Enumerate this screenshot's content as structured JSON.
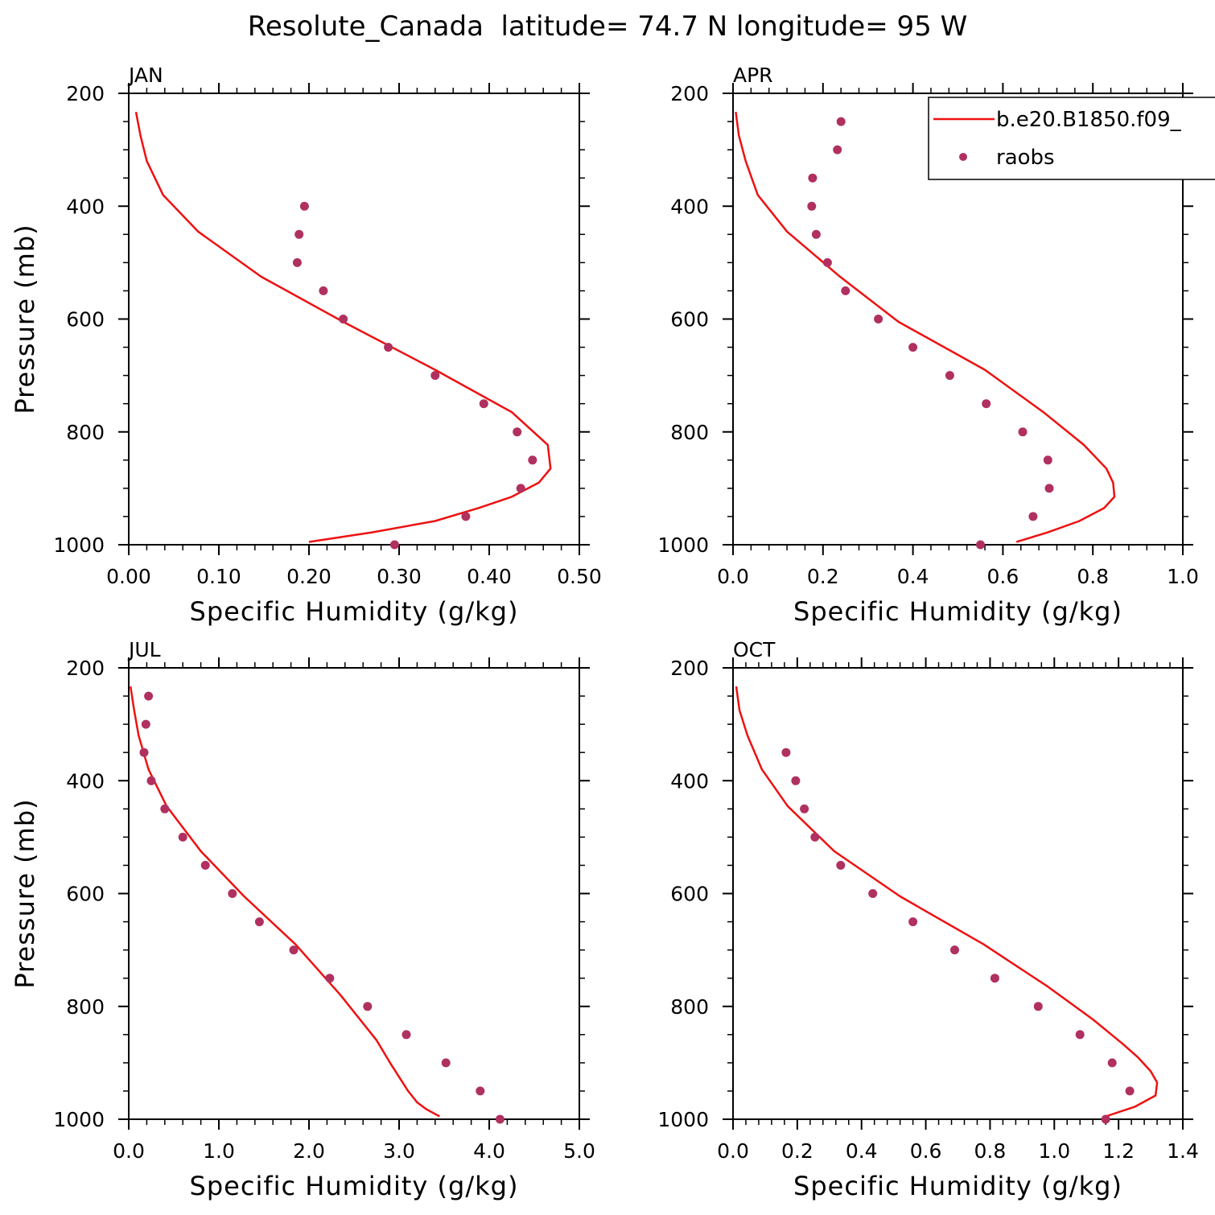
{
  "figure": {
    "title": "Resolute_Canada  latitude= 74.7 N longitude= 95 W"
  },
  "legend": {
    "placement": "top-right of APR panel",
    "model_label": "b.e20.B1850.f09_",
    "obs_label": "raobs"
  },
  "colors": {
    "model_line": "#ee1111",
    "obs_marker": "#b03060",
    "axes": "#000000"
  },
  "chart_data": [
    {
      "type": "line",
      "panel_title": "JAN",
      "xlabel": "Specific Humidity (g/kg)",
      "ylabel": "Pressure (mb)",
      "xlim": [
        0,
        0.5
      ],
      "ylim": [
        200,
        1000
      ],
      "y_inverted": true,
      "xticks": [
        0,
        0.1,
        0.2,
        0.3,
        0.4,
        0.5
      ],
      "xtick_labels": [
        "0.00",
        "0.10",
        "0.20",
        "0.30",
        "0.40",
        "0.50"
      ],
      "yticks": [
        200,
        400,
        600,
        800,
        1000
      ],
      "ytick_labels": [
        "200",
        "400",
        "600",
        "800",
        "1000"
      ],
      "series": [
        {
          "name": "b.e20.B1850.f09_",
          "kind": "line",
          "x": [
            0.008,
            0.013,
            0.02,
            0.038,
            0.077,
            0.147,
            0.238,
            0.34,
            0.425,
            0.465,
            0.468,
            0.455,
            0.425,
            0.388,
            0.34,
            0.27,
            0.2
          ],
          "y": [
            233,
            275,
            320,
            380,
            445,
            525,
            605,
            690,
            765,
            823,
            865,
            890,
            915,
            935,
            958,
            978,
            995
          ]
        },
        {
          "name": "raobs",
          "kind": "scatter",
          "x": [
            0.195,
            0.189,
            0.187,
            0.216,
            0.238,
            0.288,
            0.34,
            0.394,
            0.431,
            0.448,
            0.435,
            0.374,
            0.295
          ],
          "y": [
            400,
            450,
            500,
            550,
            600,
            650,
            700,
            750,
            800,
            850,
            900,
            950,
            1000
          ]
        }
      ]
    },
    {
      "type": "line",
      "panel_title": "APR",
      "xlabel": "Specific Humidity (g/kg)",
      "ylabel": "",
      "xlim": [
        0,
        1.0
      ],
      "ylim": [
        200,
        1000
      ],
      "y_inverted": true,
      "xticks": [
        0,
        0.2,
        0.4,
        0.6,
        0.8,
        1.0
      ],
      "xtick_labels": [
        "0.0",
        "0.2",
        "0.4",
        "0.6",
        "0.8",
        "1.0"
      ],
      "yticks": [
        200,
        400,
        600,
        800,
        1000
      ],
      "ytick_labels": [
        "200",
        "400",
        "600",
        "800",
        "1000"
      ],
      "series": [
        {
          "name": "b.e20.B1850.f09_",
          "kind": "line",
          "x": [
            0.006,
            0.013,
            0.028,
            0.055,
            0.12,
            0.238,
            0.368,
            0.56,
            0.69,
            0.78,
            0.83,
            0.845,
            0.848,
            0.825,
            0.77,
            0.7,
            0.63
          ],
          "y": [
            233,
            275,
            320,
            380,
            445,
            525,
            605,
            690,
            765,
            823,
            865,
            890,
            915,
            935,
            958,
            978,
            995
          ]
        },
        {
          "name": "raobs",
          "kind": "scatter",
          "x": [
            0.24,
            0.232,
            0.177,
            0.175,
            0.185,
            0.21,
            0.25,
            0.323,
            0.4,
            0.482,
            0.563,
            0.644,
            0.7,
            0.703,
            0.667,
            0.55
          ],
          "y": [
            250,
            300,
            350,
            400,
            450,
            500,
            550,
            600,
            650,
            700,
            750,
            800,
            850,
            900,
            950,
            1000
          ]
        }
      ]
    },
    {
      "type": "line",
      "panel_title": "JUL",
      "xlabel": "Specific Humidity (g/kg)",
      "ylabel": "Pressure (mb)",
      "xlim": [
        0,
        5.0
      ],
      "ylim": [
        200,
        1000
      ],
      "y_inverted": true,
      "xticks": [
        0,
        1,
        2,
        3,
        4,
        5
      ],
      "xtick_labels": [
        "0.0",
        "1.0",
        "2.0",
        "3.0",
        "4.0",
        "5.0"
      ],
      "yticks": [
        200,
        400,
        600,
        800,
        1000
      ],
      "ytick_labels": [
        "200",
        "400",
        "600",
        "800",
        "1000"
      ],
      "series": [
        {
          "name": "b.e20.B1850.f09_",
          "kind": "line",
          "x": [
            0.02,
            0.06,
            0.11,
            0.22,
            0.42,
            0.8,
            1.28,
            1.85,
            2.35,
            2.75,
            2.9,
            3.0,
            3.1,
            3.2,
            3.3,
            3.45
          ],
          "y": [
            233,
            275,
            320,
            380,
            445,
            525,
            605,
            690,
            780,
            860,
            900,
            925,
            950,
            970,
            982,
            995
          ]
        },
        {
          "name": "raobs",
          "kind": "scatter",
          "x": [
            0.22,
            0.19,
            0.17,
            0.25,
            0.4,
            0.6,
            0.85,
            1.15,
            1.45,
            1.83,
            2.23,
            2.65,
            3.08,
            3.52,
            3.9,
            4.12
          ],
          "y": [
            250,
            300,
            350,
            400,
            450,
            500,
            550,
            600,
            650,
            700,
            750,
            800,
            850,
            900,
            950,
            1000
          ]
        }
      ]
    },
    {
      "type": "line",
      "panel_title": "OCT",
      "xlabel": "Specific Humidity (g/kg)",
      "ylabel": "",
      "xlim": [
        0,
        1.4
      ],
      "ylim": [
        200,
        1000
      ],
      "y_inverted": true,
      "xticks": [
        0,
        0.2,
        0.4,
        0.6,
        0.8,
        1.0,
        1.2,
        1.4
      ],
      "xtick_labels": [
        "0.0",
        "0.2",
        "0.4",
        "0.6",
        "0.8",
        "1.0",
        "1.2",
        "1.4"
      ],
      "yticks": [
        200,
        400,
        600,
        800,
        1000
      ],
      "ytick_labels": [
        "200",
        "400",
        "600",
        "800",
        "1000"
      ],
      "series": [
        {
          "name": "b.e20.B1850.f09_",
          "kind": "line",
          "x": [
            0.01,
            0.02,
            0.045,
            0.09,
            0.17,
            0.315,
            0.52,
            0.78,
            0.98,
            1.12,
            1.21,
            1.26,
            1.3,
            1.32,
            1.315,
            1.25,
            1.16
          ],
          "y": [
            233,
            275,
            320,
            380,
            445,
            525,
            605,
            690,
            765,
            823,
            865,
            890,
            915,
            935,
            958,
            978,
            995
          ]
        },
        {
          "name": "raobs",
          "kind": "scatter",
          "x": [
            0.165,
            0.195,
            0.222,
            0.255,
            0.335,
            0.435,
            0.56,
            0.69,
            0.815,
            0.95,
            1.08,
            1.18,
            1.235,
            1.16
          ],
          "y": [
            350,
            400,
            450,
            500,
            550,
            600,
            650,
            700,
            750,
            800,
            850,
            900,
            950,
            1000
          ]
        }
      ]
    }
  ]
}
